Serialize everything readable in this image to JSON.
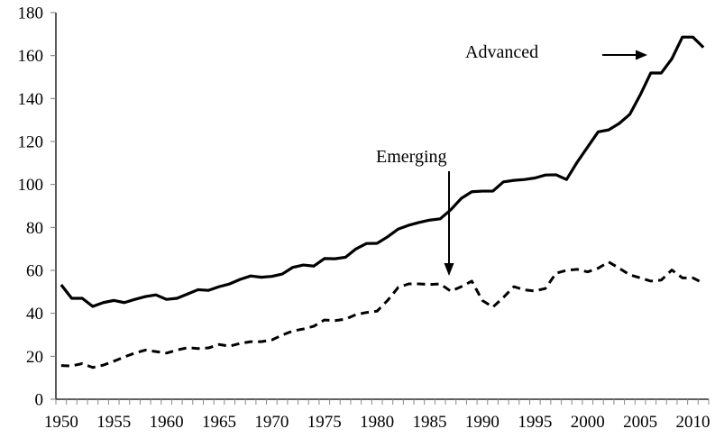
{
  "chart_data": {
    "type": "line",
    "title": "",
    "xlabel": "",
    "ylabel": "",
    "ylim": [
      0,
      180
    ],
    "yticks": [
      0,
      20,
      40,
      60,
      80,
      100,
      120,
      140,
      160,
      180
    ],
    "xticks_labeled": [
      1950,
      1955,
      1960,
      1965,
      1970,
      1975,
      1980,
      1985,
      1990,
      1995,
      2000,
      2005,
      2010
    ],
    "grid": false,
    "legend": "none",
    "x": [
      1950,
      1951,
      1952,
      1953,
      1954,
      1955,
      1956,
      1957,
      1958,
      1959,
      1960,
      1961,
      1962,
      1963,
      1964,
      1965,
      1966,
      1967,
      1968,
      1969,
      1970,
      1971,
      1972,
      1973,
      1974,
      1975,
      1976,
      1977,
      1978,
      1979,
      1980,
      1981,
      1982,
      1983,
      1984,
      1985,
      1986,
      1987,
      1988,
      1989,
      1990,
      1991,
      1992,
      1993,
      1994,
      1995,
      1996,
      1997,
      1998,
      1999,
      2000,
      2001,
      2002,
      2003,
      2004,
      2005,
      2006,
      2007,
      2008,
      2009,
      2010,
      2011
    ],
    "series": [
      {
        "name": "Advanced",
        "style": "solid",
        "values": [
          53.3,
          47,
          47,
          43.2,
          45,
          46,
          45,
          46.5,
          47.8,
          48.6,
          46.5,
          47,
          49,
          51,
          50.7,
          52.4,
          53.7,
          55.8,
          57.4,
          56.8,
          57.2,
          58.3,
          61.4,
          62.5,
          62,
          65.5,
          65.4,
          66.1,
          70,
          72.5,
          72.6,
          75.6,
          79.2,
          81,
          82.3,
          83.4,
          84,
          88.2,
          93.5,
          96.6,
          96.9,
          96.9,
          101.2,
          101.9,
          102.3,
          103,
          104.4,
          104.5,
          102.3,
          110.3,
          117.4,
          124.5,
          125.4,
          128.4,
          132.6,
          141.7,
          151.9,
          151.9,
          158.5,
          168.6,
          168.6,
          163.8
        ]
      },
      {
        "name": "Emerging",
        "style": "dashed",
        "values": [
          15.7,
          15.5,
          16.6,
          14.8,
          15.9,
          17.7,
          19.7,
          21.5,
          22.9,
          22.2,
          21.5,
          22.9,
          24,
          23.6,
          23.9,
          25.5,
          24.7,
          26,
          26.8,
          26.8,
          27.6,
          29.9,
          31.8,
          32.7,
          34,
          36.9,
          36.6,
          37.3,
          39.4,
          40.4,
          41,
          46,
          52,
          53.7,
          53.7,
          53.4,
          53.7,
          50.3,
          52.4,
          55,
          46,
          42.9,
          47.4,
          52.4,
          50.9,
          50.4,
          51.6,
          58.7,
          60,
          60.5,
          59.3,
          61,
          63.9,
          61,
          57.9,
          56.5,
          55,
          55.5,
          60.2,
          56.5,
          56.5,
          54
        ]
      }
    ],
    "annotations": [
      {
        "text": "Advanced",
        "series": "Advanced",
        "arrow": "horizontal-right",
        "arrow_target_year": 2006
      },
      {
        "text": "Emerging",
        "series": "Emerging",
        "arrow": "vertical-down",
        "arrow_target_year": 1987
      }
    ]
  }
}
